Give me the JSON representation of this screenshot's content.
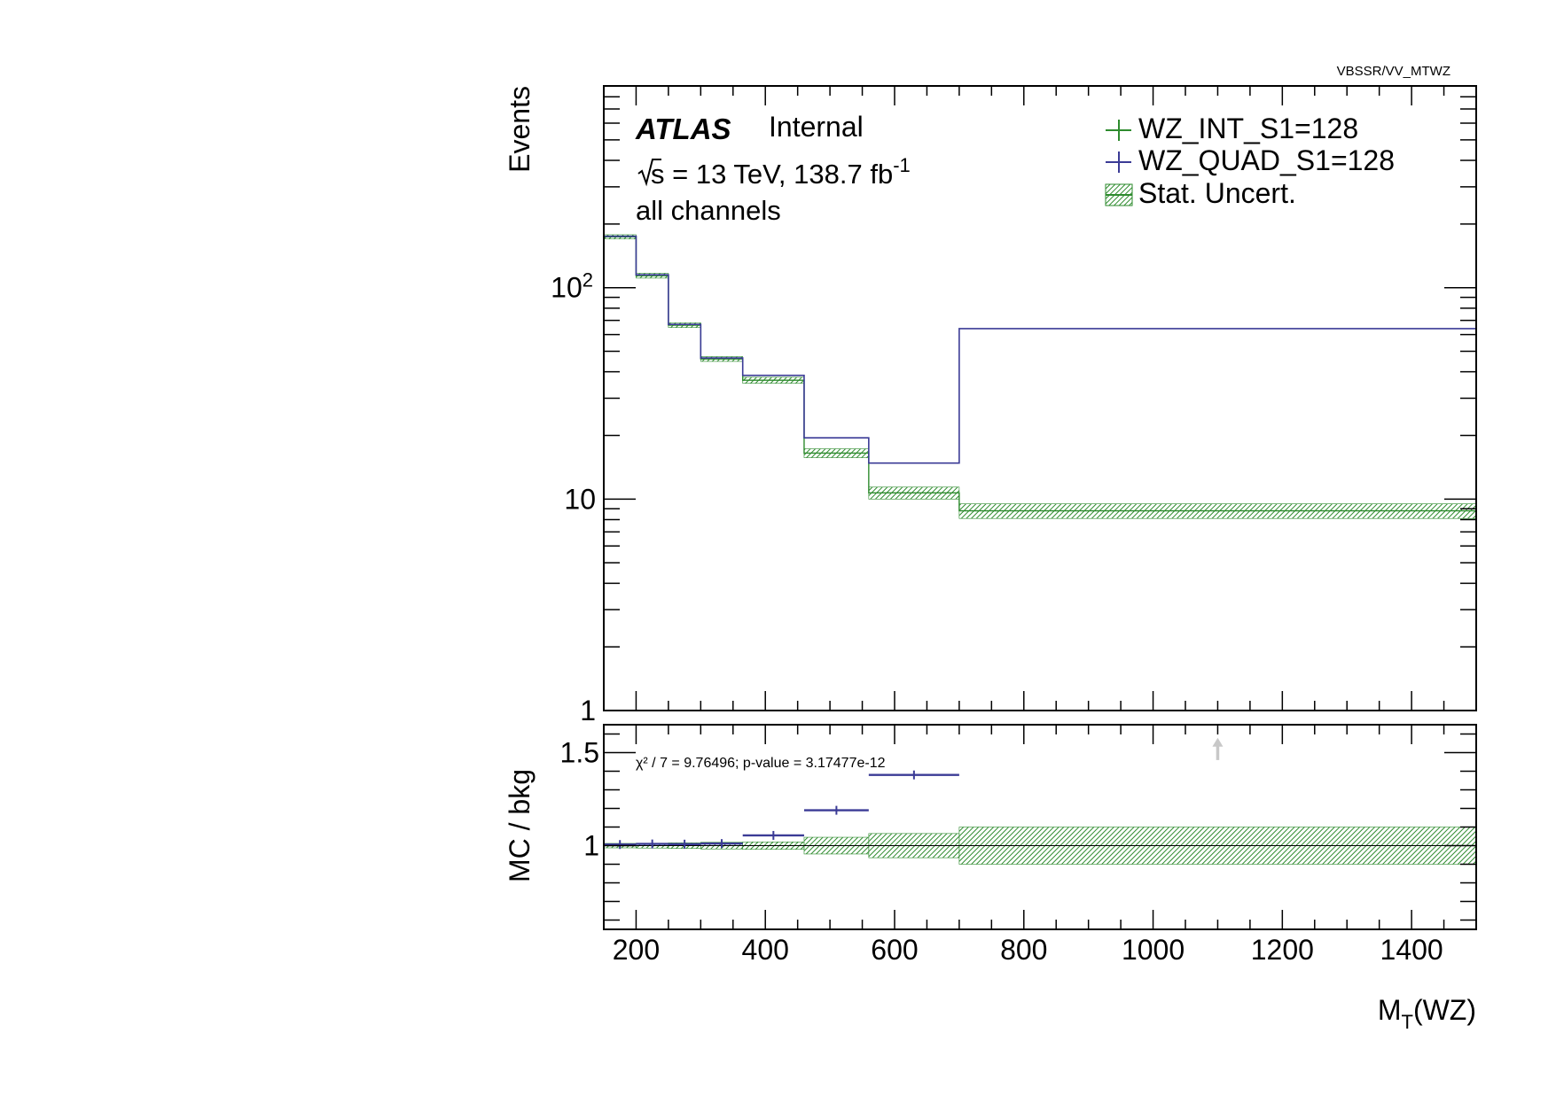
{
  "colors": {
    "int": "#2e8b2e",
    "quad": "#3b3b96",
    "band_fill": "#5aaa5a",
    "arrow": "#c8c8c8",
    "axis": "#000000"
  },
  "header": {
    "path_label": "VBSSR/VV_MTWZ",
    "experiment": "ATLAS",
    "status": "Internal",
    "energy_prefix": "s",
    "energy_rest": " = 13 TeV, 138.7 fb",
    "energy_sup": "-1",
    "channel": "all channels"
  },
  "legend": {
    "items": [
      {
        "label": "WZ_INT_S1=128",
        "kind": "cross",
        "color_key": "int"
      },
      {
        "label": "WZ_QUAD_S1=128",
        "kind": "cross",
        "color_key": "quad"
      },
      {
        "label": "Stat. Uncert.",
        "kind": "band",
        "color_key": "band_fill"
      }
    ]
  },
  "ratio_panel": {
    "chi2_text": "χ² / 7 = 9.76496; p-value = 3.17477e-12"
  },
  "chart_data": [
    {
      "type": "line",
      "panel": "main",
      "ylabel": "Events",
      "yscale": "log",
      "ylim": [
        1,
        900
      ],
      "xlim": [
        150,
        1500
      ],
      "y_ticks": [
        {
          "value": 1,
          "label": "1"
        },
        {
          "value": 10,
          "label": "10"
        },
        {
          "value": 100,
          "label": "10",
          "sup": "2"
        }
      ],
      "bin_edges": [
        150,
        200,
        250,
        300,
        365,
        460,
        560,
        700,
        1500
      ],
      "series": [
        {
          "name": "WZ_INT_S1=128",
          "color_key": "int",
          "values": [
            174,
            114,
            66.5,
            46.0,
            36.5,
            16.5,
            10.7,
            8.8
          ],
          "stat_band": [
            [
              170,
              178
            ],
            [
              111,
              117
            ],
            [
              64.8,
              68.2
            ],
            [
              44.8,
              47.2
            ],
            [
              35.3,
              37.7
            ],
            [
              15.7,
              17.3
            ],
            [
              10.0,
              11.4
            ],
            [
              8.1,
              9.5
            ]
          ]
        },
        {
          "name": "WZ_QUAD_S1=128",
          "color_key": "quad",
          "values": [
            175,
            115,
            67.0,
            46.5,
            38.5,
            19.5,
            14.8,
            64
          ]
        }
      ]
    },
    {
      "type": "line",
      "panel": "ratio",
      "xlabel": "M",
      "xlabel_sub": "T",
      "xlabel_rest": "(WZ)",
      "ylabel": "MC / bkg",
      "ylim": [
        0.55,
        1.65
      ],
      "xlim": [
        150,
        1500
      ],
      "y_ticks": [
        {
          "value": 1,
          "label": "1"
        },
        {
          "value": 1.5,
          "label": "1.5"
        }
      ],
      "x_ticks": [
        200,
        400,
        600,
        800,
        1000,
        1200,
        1400
      ],
      "bin_edges": [
        150,
        200,
        250,
        300,
        365,
        460,
        560,
        700,
        1500
      ],
      "band": [
        [
          0.988,
          1.012
        ],
        [
          0.987,
          1.013
        ],
        [
          0.985,
          1.015
        ],
        [
          0.982,
          1.018
        ],
        [
          0.98,
          1.02
        ],
        [
          0.955,
          1.045
        ],
        [
          0.935,
          1.065
        ],
        [
          0.9,
          1.1
        ]
      ],
      "ratio_values": [
        1.006,
        1.009,
        1.008,
        1.011,
        1.055,
        1.19,
        1.38,
        7.3
      ],
      "offscale_arrows": [
        {
          "x": 1100
        }
      ]
    }
  ]
}
